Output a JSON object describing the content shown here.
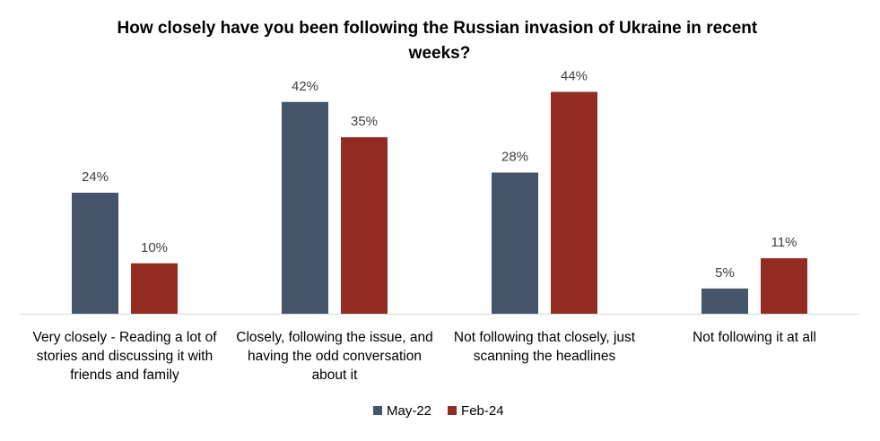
{
  "chart_data": {
    "type": "bar",
    "title": "How closely have you been following the Russian invasion of Ukraine in recent weeks?",
    "categories": [
      "Very closely - Reading a lot of stories and discussing it with friends and family",
      "Closely, following the issue, and having the odd conversation about it",
      "Not following that closely, just scanning the headlines",
      "Not following it at all"
    ],
    "series": [
      {
        "name": "May-22",
        "values": [
          24,
          42,
          28,
          5
        ],
        "labels": [
          "24%",
          "42%",
          "28%",
          "5%"
        ],
        "color": "#44546A"
      },
      {
        "name": "Feb-24",
        "values": [
          10,
          35,
          44,
          11
        ],
        "labels": [
          "10%",
          "35%",
          "44%",
          "11%"
        ],
        "color": "#922B21"
      }
    ],
    "ylim": [
      0,
      48
    ],
    "grid": false,
    "legend": "bottom"
  }
}
